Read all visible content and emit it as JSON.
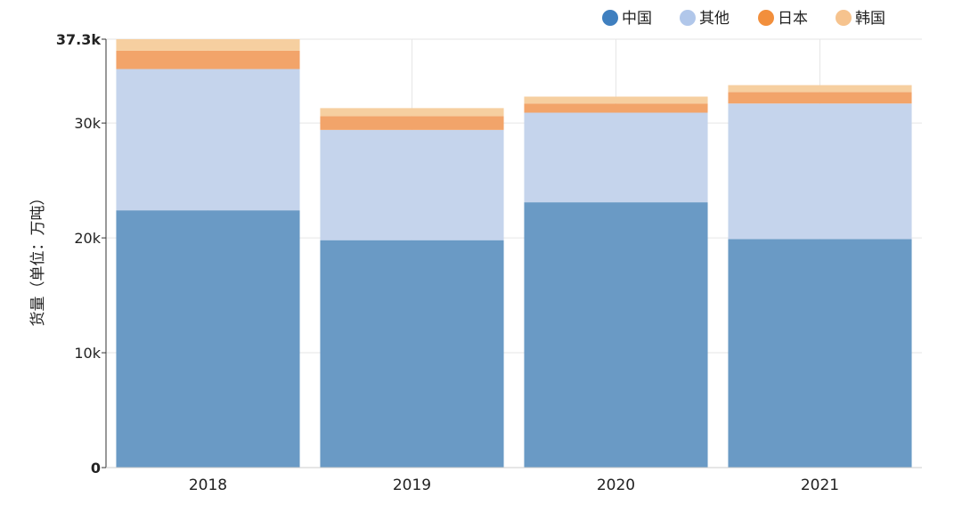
{
  "chart_data": {
    "type": "bar",
    "stacked": true,
    "title": "",
    "xlabel": "",
    "ylabel": "货量（单位：万吨）",
    "ylim": [
      0,
      37300
    ],
    "yticks": [
      {
        "value": 0,
        "label": "0",
        "bold": true
      },
      {
        "value": 10000,
        "label": "10k",
        "bold": false
      },
      {
        "value": 20000,
        "label": "20k",
        "bold": false
      },
      {
        "value": 30000,
        "label": "30k",
        "bold": false
      },
      {
        "value": 37300,
        "label": "37.3k",
        "bold": true
      }
    ],
    "categories": [
      "2018",
      "2019",
      "2020",
      "2021"
    ],
    "series": [
      {
        "name": "中国",
        "color": "#6a9ac5",
        "legend_color": "#3f7fbf",
        "values": [
          22400,
          19800,
          23100,
          19900
        ]
      },
      {
        "name": "其他",
        "color": "#c5d4ec",
        "legend_color": "#b1c7ea",
        "values": [
          12300,
          9600,
          7800,
          11800
        ]
      },
      {
        "name": "日本",
        "color": "#f2a46a",
        "legend_color": "#f28f3c",
        "values": [
          1600,
          1200,
          800,
          1000
        ]
      },
      {
        "name": "韩国",
        "color": "#f6cfa0",
        "legend_color": "#f6c38e",
        "values": [
          1000,
          700,
          600,
          600
        ]
      }
    ],
    "grid": true,
    "legend_position": "top-right"
  }
}
